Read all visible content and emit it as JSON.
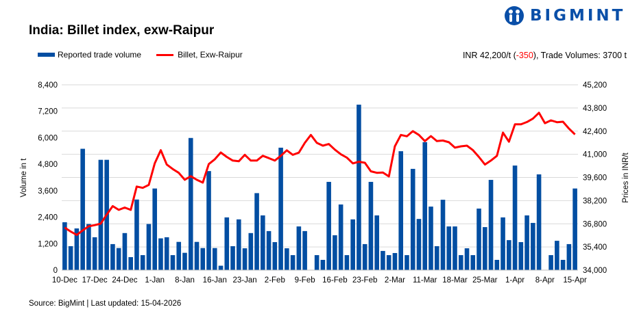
{
  "header": {
    "title": "India: Billet index, exw-Raipur",
    "logo_text": "BIGMINT",
    "summary_price": "INR 42,200/t (",
    "summary_change": "-350",
    "summary_rest": "), Trade Volumes: 3700 t"
  },
  "footer": {
    "source": "Source: BigMint | Last updated: 15-04-2026"
  },
  "colors": {
    "bars": "#034ea2",
    "line": "#ff0000",
    "grid": "#d9d9d9",
    "change_negative": "#ff0000",
    "logo": "#0a4fa8"
  },
  "chart_data": {
    "type": "bar+line",
    "title": "India: Billet index, exw-Raipur",
    "legend_placement": "top-left",
    "grid": true,
    "xlabel": "",
    "x_tick_labels": [
      "10-Dec",
      "17-Dec",
      "24-Dec",
      "1-Jan",
      "8-Jan",
      "16-Jan",
      "23-Jan",
      "2-Feb",
      "9-Feb",
      "16-Feb",
      "23-Feb",
      "2-Mar",
      "11-Mar",
      "18-Mar",
      "25-Mar",
      "1-Apr",
      "8-Apr",
      "15-Apr"
    ],
    "y_left": {
      "label": "Volume in t",
      "lim": [
        0,
        8400
      ],
      "ticks": [
        "0",
        "1,200",
        "2,400",
        "3,600",
        "4,800",
        "6,000",
        "7,200",
        "8,400"
      ]
    },
    "y_right": {
      "label": "Prices in INR/t",
      "lim": [
        34000,
        45200
      ],
      "ticks": [
        "34,000",
        "35,400",
        "36,800",
        "38,200",
        "39,600",
        "41,000",
        "42,400",
        "43,800",
        "45,200"
      ]
    },
    "series": [
      {
        "name": "Reported trade volume",
        "type": "bar",
        "axis": "left",
        "values": [
          2170,
          1085,
          1890,
          5500,
          2090,
          1490,
          5000,
          5000,
          1180,
          1000,
          1680,
          590,
          3200,
          680,
          2090,
          3700,
          1440,
          1490,
          680,
          1280,
          785,
          5990,
          1280,
          1000,
          4490,
          1000,
          200,
          2390,
          1085,
          2300,
          990,
          1680,
          3490,
          2480,
          1770,
          1270,
          5550,
          990,
          680,
          1980,
          1770,
          0,
          680,
          465,
          4000,
          1580,
          2975,
          680,
          2300,
          7500,
          1180,
          4000,
          2480,
          870,
          680,
          775,
          5390,
          680,
          4590,
          2320,
          5800,
          2880,
          1085,
          3190,
          1980,
          1980,
          680,
          990,
          680,
          2790,
          1950,
          4090,
          465,
          2390,
          1360,
          4740,
          1270,
          2480,
          2140,
          4340,
          0,
          680,
          1330,
          465,
          1180,
          3700
        ]
      },
      {
        "name": "Billet, Exw-Raipur",
        "type": "line",
        "axis": "right",
        "values": [
          36570,
          36330,
          36130,
          36400,
          36650,
          36720,
          36810,
          37360,
          37870,
          37640,
          37780,
          37640,
          39050,
          38970,
          39150,
          40450,
          41250,
          40380,
          40110,
          39880,
          39460,
          39680,
          39460,
          39290,
          40410,
          40700,
          41110,
          40840,
          40620,
          40580,
          40970,
          40620,
          40620,
          40910,
          40770,
          40620,
          40910,
          41240,
          40970,
          41100,
          41690,
          42170,
          41690,
          41520,
          41620,
          41280,
          41000,
          40800,
          40450,
          40550,
          40490,
          39970,
          39880,
          39900,
          39660,
          41480,
          42170,
          42090,
          42400,
          42170,
          41800,
          42100,
          41800,
          41830,
          41730,
          41400,
          41480,
          41520,
          41250,
          40840,
          40380,
          40620,
          40910,
          42310,
          41760,
          42810,
          42810,
          42950,
          43160,
          43510,
          42880,
          43050,
          42940,
          42970,
          42550,
          42200
        ]
      }
    ]
  }
}
